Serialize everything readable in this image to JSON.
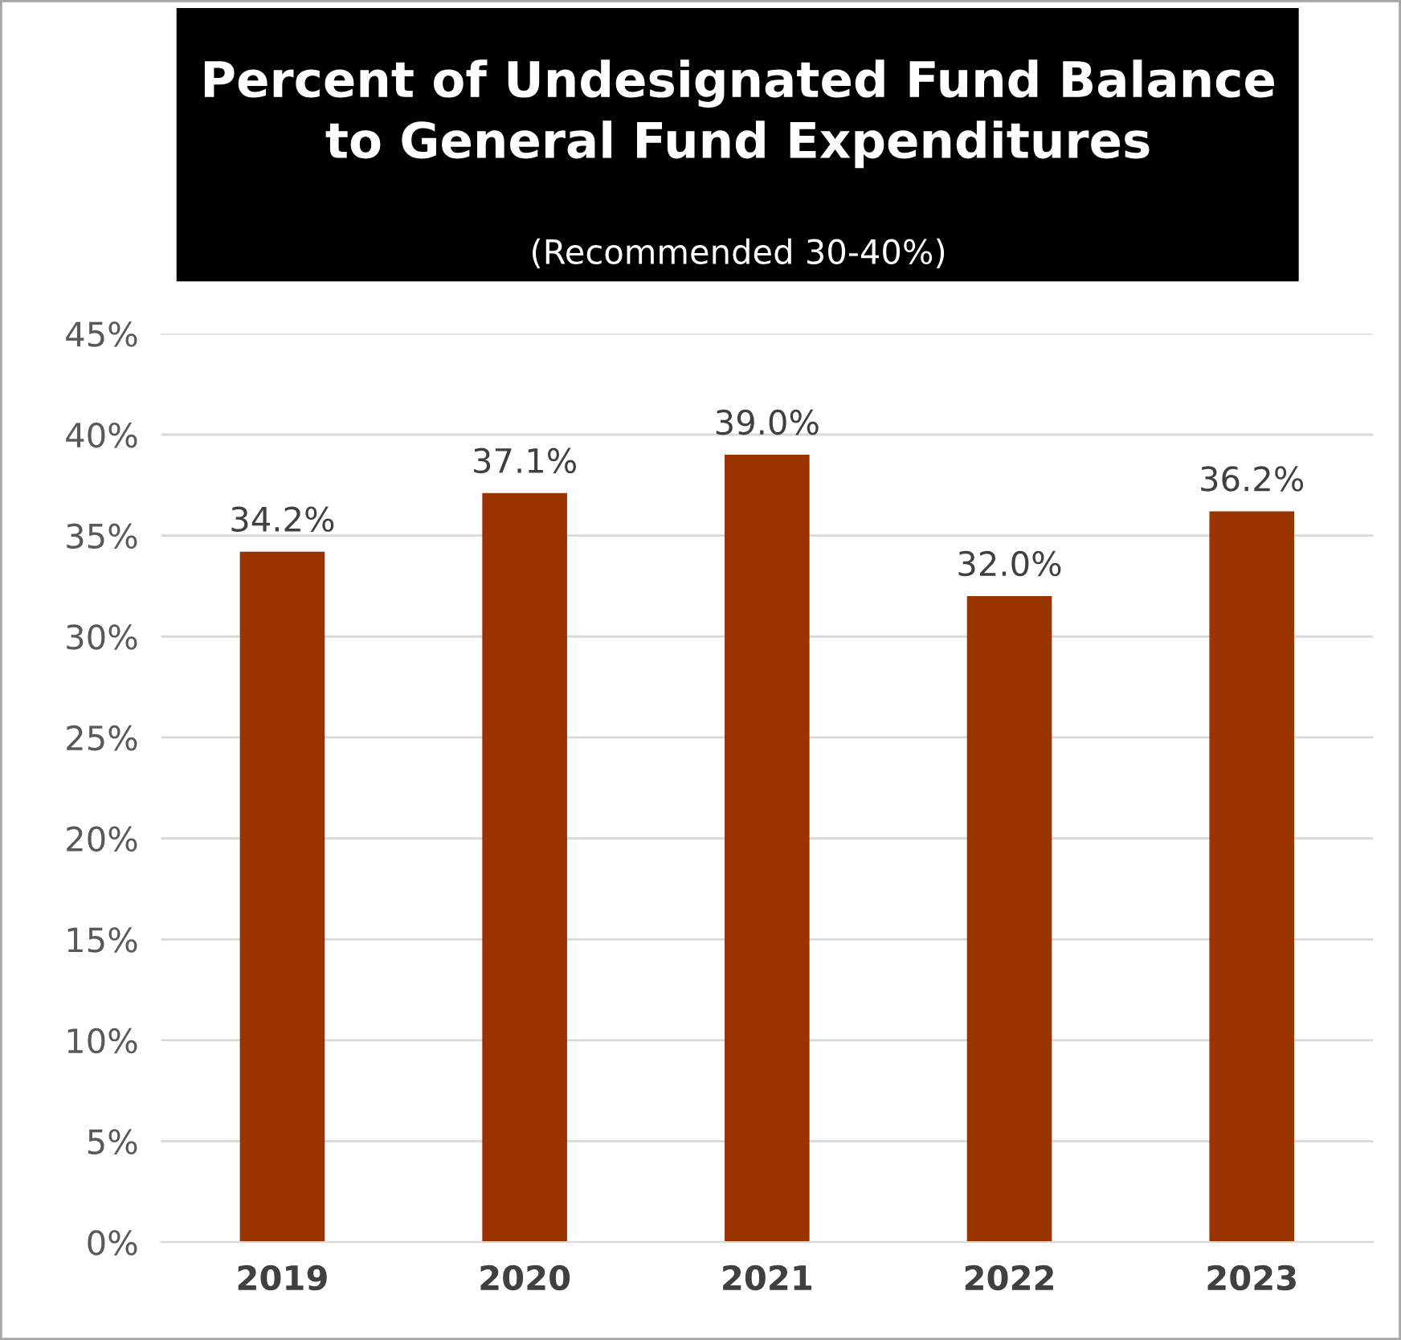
{
  "chart_data": {
    "type": "bar",
    "title": "Percent of Undesignated Fund Balance\nto General Fund Expenditures",
    "subtitle": "(Recommended 30-40%)",
    "categories": [
      "2019",
      "2020",
      "2021",
      "2022",
      "2023"
    ],
    "values": [
      34.2,
      37.1,
      39.0,
      32.0,
      36.2
    ],
    "value_labels": [
      "34.2%",
      "37.1%",
      "39.0%",
      "32.0%",
      "36.2%"
    ],
    "color": "#993300",
    "ylim": [
      0,
      45
    ],
    "yticks": [
      {
        "value": 0,
        "label": "0%"
      },
      {
        "value": 5,
        "label": "5%"
      },
      {
        "value": 10,
        "label": "10%"
      },
      {
        "value": 15,
        "label": "15%"
      },
      {
        "value": 20,
        "label": "20%"
      },
      {
        "value": 25,
        "label": "25%"
      },
      {
        "value": 30,
        "label": "30%"
      },
      {
        "value": 35,
        "label": "35%"
      },
      {
        "value": 40,
        "label": "40%"
      },
      {
        "value": 45,
        "label": "45%"
      }
    ],
    "grid": "y",
    "legend": false
  }
}
